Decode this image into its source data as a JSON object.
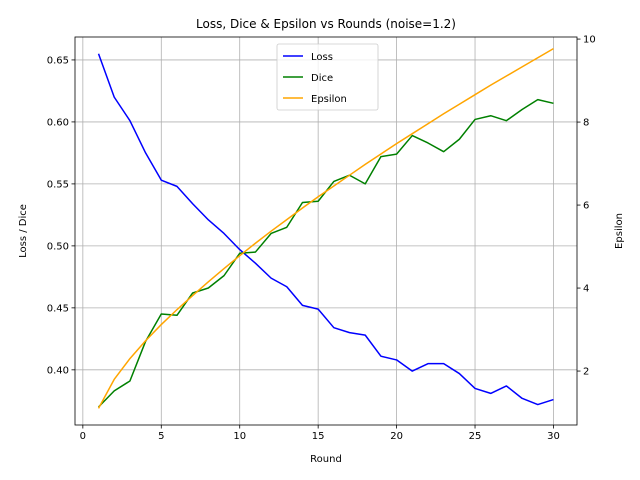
{
  "chart_data": {
    "type": "line",
    "title": "Loss, Dice & Epsilon vs Rounds (noise=1.2)",
    "xlabel": "Round",
    "ylabel_left": "Loss / Dice",
    "ylabel_right": "Epsilon",
    "xlim": [
      -0.5,
      31.5
    ],
    "ylim_left": [
      0.3555,
      0.6685
    ],
    "ylim_right": [
      0.7,
      10.05
    ],
    "xticks": [
      0,
      5,
      10,
      15,
      20,
      25,
      30
    ],
    "yticks_left": [
      0.4,
      0.45,
      0.5,
      0.55,
      0.6,
      0.65
    ],
    "yticks_left_labels": [
      "0.40",
      "0.45",
      "0.50",
      "0.55",
      "0.60",
      "0.65"
    ],
    "yticks_right": [
      2,
      4,
      6,
      8,
      10
    ],
    "grid": true,
    "legend_position": "top-center",
    "x": [
      1,
      2,
      3,
      4,
      5,
      6,
      7,
      8,
      9,
      10,
      11,
      12,
      13,
      14,
      15,
      16,
      17,
      18,
      19,
      20,
      21,
      22,
      23,
      24,
      25,
      26,
      27,
      28,
      29,
      30
    ],
    "series": [
      {
        "name": "Loss",
        "axis": "left",
        "color": "#0000ff",
        "values": [
          0.655,
          0.62,
          0.601,
          0.575,
          0.553,
          0.548,
          0.534,
          0.521,
          0.51,
          0.497,
          0.486,
          0.474,
          0.467,
          0.452,
          0.449,
          0.434,
          0.43,
          0.428,
          0.411,
          0.408,
          0.399,
          0.405,
          0.405,
          0.397,
          0.385,
          0.381,
          0.387,
          0.377,
          0.372,
          0.376
        ]
      },
      {
        "name": "Dice",
        "axis": "left",
        "color": "#008000",
        "values": [
          0.37,
          0.383,
          0.391,
          0.423,
          0.445,
          0.444,
          0.462,
          0.466,
          0.476,
          0.494,
          0.495,
          0.51,
          0.515,
          0.535,
          0.536,
          0.552,
          0.557,
          0.55,
          0.572,
          0.574,
          0.589,
          0.583,
          0.576,
          0.586,
          0.602,
          0.605,
          0.601,
          0.61,
          0.618,
          0.615
        ]
      },
      {
        "name": "Epsilon",
        "axis": "right",
        "color": "#ffa500",
        "values": [
          1.1,
          1.8,
          2.3,
          2.73,
          3.12,
          3.48,
          3.82,
          4.15,
          4.47,
          4.78,
          5.08,
          5.37,
          5.65,
          5.93,
          6.2,
          6.46,
          6.72,
          6.98,
          7.23,
          7.48,
          7.72,
          7.96,
          8.2,
          8.43,
          8.66,
          8.89,
          9.11,
          9.33,
          9.55,
          9.77
        ]
      }
    ]
  }
}
